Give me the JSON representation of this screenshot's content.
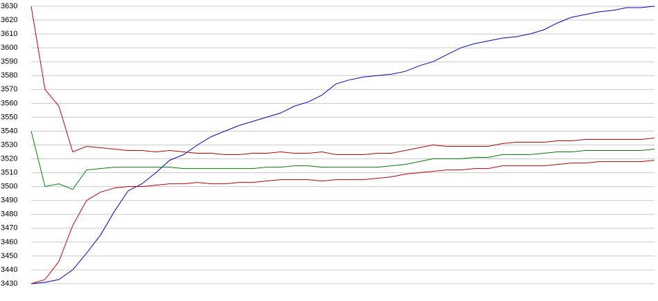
{
  "chart_data": {
    "type": "line",
    "ylim": [
      3430,
      3630
    ],
    "yticks": [
      3430,
      3440,
      3450,
      3460,
      3470,
      3480,
      3490,
      3500,
      3510,
      3520,
      3530,
      3540,
      3550,
      3560,
      3570,
      3580,
      3590,
      3600,
      3610,
      3620,
      3630
    ],
    "grid": true,
    "series": [
      {
        "color": "#0000c0",
        "values": [
          3430,
          3431,
          3433,
          3440,
          3452,
          3465,
          3482,
          3497,
          3502,
          3510,
          3519,
          3523,
          3530,
          3536,
          3540,
          3544,
          3547,
          3550,
          3553,
          3558,
          3561,
          3566,
          3574,
          3577,
          3579,
          3580,
          3581,
          3583,
          3587,
          3590,
          3595,
          3600,
          3603,
          3605,
          3607,
          3608,
          3610,
          3613,
          3618,
          3622,
          3624,
          3626,
          3627,
          3629,
          3629,
          3630
        ]
      },
      {
        "color": "#c00000",
        "values": [
          3630,
          3570,
          3558,
          3525,
          3529,
          3528,
          3527,
          3526,
          3526,
          3525,
          3526,
          3525,
          3524,
          3524,
          3523,
          3523,
          3524,
          3524,
          3525,
          3524,
          3524,
          3525,
          3523,
          3523,
          3523,
          3524,
          3524,
          3526,
          3528,
          3530,
          3529,
          3529,
          3529,
          3529,
          3531,
          3532,
          3532,
          3532,
          3533,
          3533,
          3534,
          3534,
          3534,
          3534,
          3534,
          3535
        ]
      },
      {
        "color": "#008000",
        "values": [
          3540,
          3500,
          3502,
          3498,
          3512,
          3513,
          3514,
          3514,
          3514,
          3514,
          3514,
          3513,
          3513,
          3513,
          3513,
          3513,
          3513,
          3514,
          3514,
          3515,
          3515,
          3514,
          3514,
          3514,
          3514,
          3514,
          3515,
          3516,
          3518,
          3520,
          3520,
          3520,
          3521,
          3521,
          3523,
          3523,
          3523,
          3524,
          3525,
          3525,
          3526,
          3526,
          3526,
          3526,
          3526,
          3527
        ]
      },
      {
        "color": "#c00000",
        "values": [
          3430,
          3433,
          3446,
          3472,
          3490,
          3496,
          3499,
          3500,
          3500,
          3501,
          3502,
          3502,
          3503,
          3502,
          3502,
          3503,
          3503,
          3504,
          3505,
          3505,
          3505,
          3504,
          3505,
          3505,
          3505,
          3506,
          3507,
          3509,
          3510,
          3511,
          3512,
          3512,
          3513,
          3513,
          3515,
          3515,
          3515,
          3515,
          3516,
          3517,
          3517,
          3518,
          3518,
          3518,
          3518,
          3519
        ]
      }
    ]
  }
}
